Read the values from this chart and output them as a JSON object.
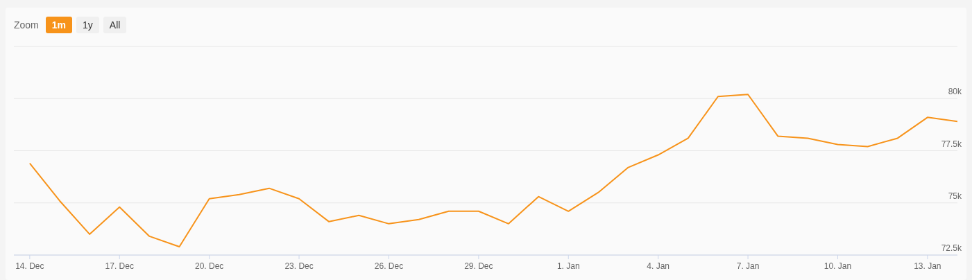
{
  "chart_data": {
    "type": "line",
    "categories": [
      "14. Dec",
      null,
      null,
      "17. Dec",
      null,
      null,
      "20. Dec",
      null,
      null,
      "23. Dec",
      null,
      null,
      "26. Dec",
      null,
      null,
      "29. Dec",
      null,
      null,
      "1. Jan",
      null,
      null,
      "4. Jan",
      null,
      null,
      "7. Jan",
      null,
      null,
      "10. Jan",
      null,
      null,
      "13. Jan",
      null
    ],
    "series": [
      {
        "color": "#f7931a",
        "values": [
          76900,
          75100,
          73500,
          74800,
          73400,
          72900,
          75200,
          75400,
          75700,
          75200,
          74100,
          74400,
          74000,
          74200,
          74600,
          74600,
          74000,
          75300,
          74600,
          75500,
          76700,
          77300,
          78100,
          80100,
          80200,
          78200,
          78100,
          77800,
          77700,
          78100,
          79100,
          78900
        ]
      }
    ],
    "ylim": [
      72500,
      82500
    ],
    "yticks": [
      {
        "value": 72500,
        "label": "72.5k"
      },
      {
        "value": 75000,
        "label": "75k"
      },
      {
        "value": 77500,
        "label": "77.5k"
      },
      {
        "value": 80000,
        "label": "80k"
      },
      {
        "value": 82500,
        "label": null
      }
    ],
    "grid": "y",
    "legend": false,
    "marker": "none",
    "line_style": "solid",
    "annotations": [
      "Zoom",
      "1m",
      "1y",
      "All"
    ]
  }
}
